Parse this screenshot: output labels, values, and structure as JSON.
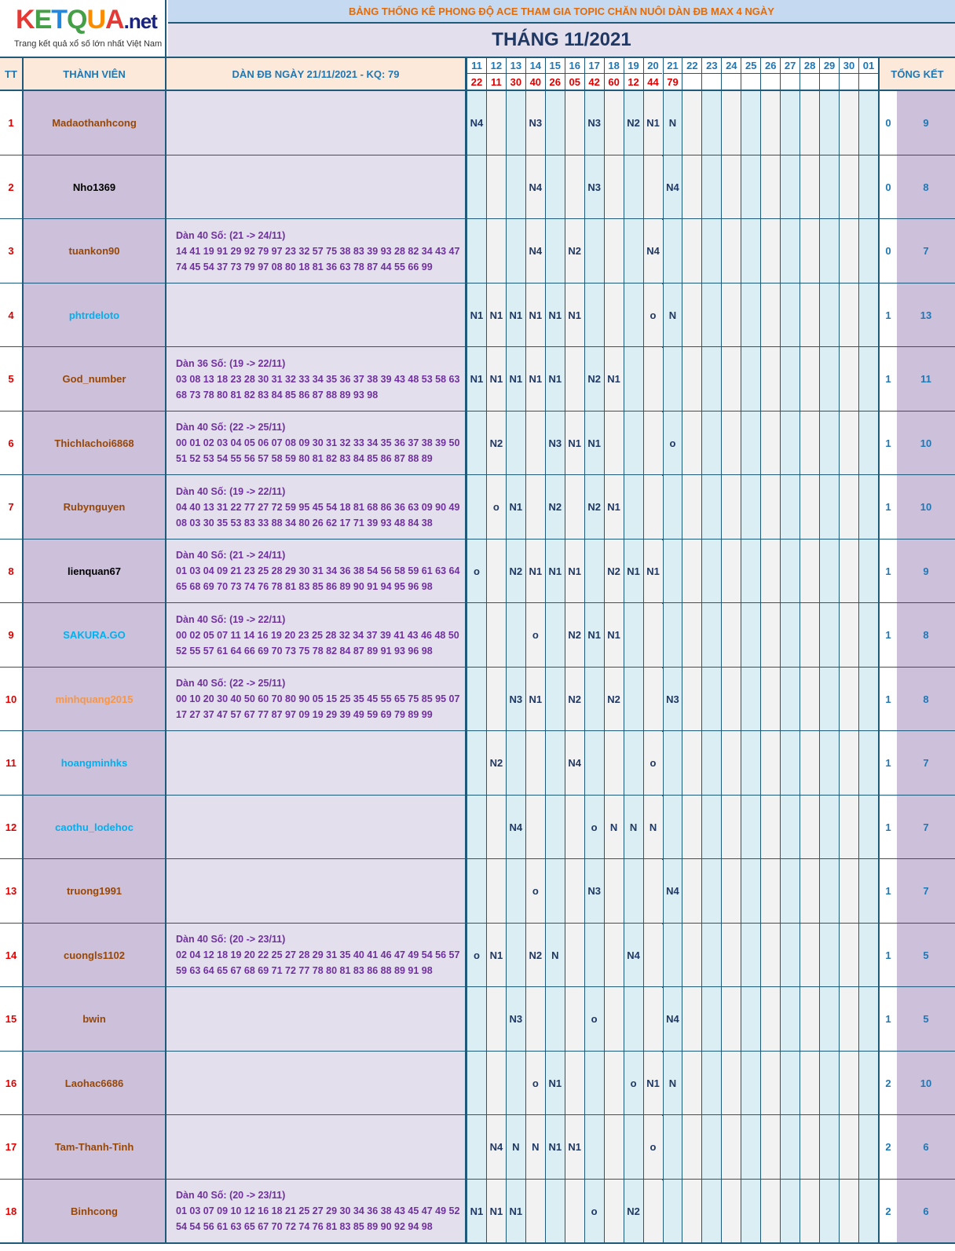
{
  "logo": {
    "brand_letters": [
      "K",
      "E",
      "T",
      "Q",
      "U",
      "A"
    ],
    "domain": ".net",
    "tagline": "Trang kết quả xổ số lớn nhất Việt Nam"
  },
  "title": "BẢNG THỐNG KÊ PHONG ĐỘ ACE THAM GIA TOPIC CHĂN NUÔI DÀN ĐB MAX 4 NGÀY",
  "month": "THÁNG 11/2021",
  "headers": {
    "tt": "TT",
    "member": "THÀNH VIÊN",
    "dan": "DÀN ĐB NGÀY 21/11/2021 - KQ: 79",
    "total": "TỔNG KẾT"
  },
  "days": [
    "11",
    "12",
    "13",
    "14",
    "15",
    "16",
    "17",
    "18",
    "19",
    "20",
    "21",
    "22",
    "23",
    "24",
    "25",
    "26",
    "27",
    "28",
    "29",
    "30",
    "01"
  ],
  "results": [
    "22",
    "11",
    "30",
    "40",
    "26",
    "05",
    "42",
    "60",
    "12",
    "44",
    "79",
    "",
    "",
    "",
    "",
    "",
    "",
    "",
    "",
    "",
    ""
  ],
  "colors": {
    "brown": "#974706",
    "black": "#000000",
    "blue": "#00b0f0",
    "orange": "#f79646"
  },
  "rows": [
    {
      "tt": "1",
      "name": "Madaothanhcong",
      "color": "brown",
      "dan": [
        "",
        "",
        ""
      ],
      "cells": [
        "N4",
        "",
        "",
        "N3",
        "",
        "",
        "N3",
        "",
        "N2",
        "N1",
        "N",
        "",
        "",
        "",
        "",
        "",
        "",
        "",
        "",
        "",
        ""
      ],
      "count": "0",
      "total": "9"
    },
    {
      "tt": "2",
      "name": "Nho1369",
      "color": "black",
      "dan": [
        "",
        "",
        ""
      ],
      "cells": [
        "",
        "",
        "",
        "N4",
        "",
        "",
        "N3",
        "",
        "",
        "",
        "N4",
        "",
        "",
        "",
        "",
        "",
        "",
        "",
        "",
        "",
        ""
      ],
      "count": "0",
      "total": "8"
    },
    {
      "tt": "3",
      "name": "tuankon90",
      "color": "brown",
      "dan": [
        "Dàn 40 Số: (21 -> 24/11)",
        "14 41 19 91 29 92 79 97 23 32 57 75 38 83 39 93 28 82 34 43 47",
        "74 45 54 37 73 79 97 08 80 18 81 36 63 78 87 44 55 66 99"
      ],
      "cells": [
        "",
        "",
        "",
        "N4",
        "",
        "N2",
        "",
        "",
        "",
        "N4",
        "",
        "",
        "",
        "",
        "",
        "",
        "",
        "",
        "",
        "",
        ""
      ],
      "count": "0",
      "total": "7"
    },
    {
      "tt": "4",
      "name": "phtrdeloto",
      "color": "blue",
      "dan": [
        "",
        "",
        ""
      ],
      "cells": [
        "N1",
        "N1",
        "N1",
        "N1",
        "N1",
        "N1",
        "",
        "",
        "",
        "o",
        "N",
        "",
        "",
        "",
        "",
        "",
        "",
        "",
        "",
        "",
        ""
      ],
      "count": "1",
      "total": "13"
    },
    {
      "tt": "5",
      "name": "God_number",
      "color": "brown",
      "dan": [
        "Dàn 36 Số: (19 -> 22/11)",
        "03 08 13 18 23 28 30 31 32 33 34 35 36 37 38 39 43 48 53 58 63",
        "68 73 78 80 81 82 83 84 85 86 87 88 89 93 98"
      ],
      "cells": [
        "N1",
        "N1",
        "N1",
        "N1",
        "N1",
        "",
        "N2",
        "N1",
        "",
        "",
        "",
        "",
        "",
        "",
        "",
        "",
        "",
        "",
        "",
        "",
        ""
      ],
      "count": "1",
      "total": "11"
    },
    {
      "tt": "6",
      "name": "Thichlachoi6868",
      "color": "brown",
      "dan": [
        "Dàn 40 Số: (22 -> 25/11)",
        "00 01 02 03 04 05 06 07 08 09 30 31 32 33 34 35 36 37 38 39 50",
        "51 52 53 54 55 56 57 58 59 80 81 82 83 84 85 86 87 88 89"
      ],
      "cells": [
        "",
        "N2",
        "",
        "",
        "N3",
        "N1",
        "N1",
        "",
        "",
        "",
        "o",
        "",
        "",
        "",
        "",
        "",
        "",
        "",
        "",
        "",
        ""
      ],
      "count": "1",
      "total": "10"
    },
    {
      "tt": "7",
      "name": "Rubynguyen",
      "color": "brown",
      "dan": [
        "Dàn 40 Số: (19 -> 22/11)",
        "04 40 13 31 22 77 27 72 59 95 45 54 18 81 68 86 36 63 09 90 49",
        "08 03 30 35 53 83 33 88 34 80 26 62 17 71 39 93 48 84 38"
      ],
      "cells": [
        "",
        "o",
        "N1",
        "",
        "N2",
        "",
        "N2",
        "N1",
        "",
        "",
        "",
        "",
        "",
        "",
        "",
        "",
        "",
        "",
        "",
        "",
        ""
      ],
      "count": "1",
      "total": "10"
    },
    {
      "tt": "8",
      "name": "lienquan67",
      "color": "black",
      "dan": [
        "Dàn 40 Số: (21 -> 24/11)",
        "01 03 04 09 21 23 25 28 29 30 31 34 36 38 54 56 58 59 61 63 64",
        "65 68 69 70 73 74 76 78 81 83 85 86 89 90 91 94 95 96 98"
      ],
      "cells": [
        "o",
        "",
        "N2",
        "N1",
        "N1",
        "N1",
        "",
        "N2",
        "N1",
        "N1",
        "",
        "",
        "",
        "",
        "",
        "",
        "",
        "",
        "",
        "",
        ""
      ],
      "count": "1",
      "total": "9"
    },
    {
      "tt": "9",
      "name": "SAKURA.GO",
      "color": "blue",
      "dan": [
        "Dàn 40 Số: (19 -> 22/11)",
        "00 02 05 07 11 14 16 19 20 23 25 28 32 34 37 39 41 43 46 48 50",
        "52 55 57 61 64 66 69 70 73 75 78 82 84 87 89 91 93 96 98"
      ],
      "cells": [
        "",
        "",
        "",
        "o",
        "",
        "N2",
        "N1",
        "N1",
        "",
        "",
        "",
        "",
        "",
        "",
        "",
        "",
        "",
        "",
        "",
        "",
        ""
      ],
      "count": "1",
      "total": "8"
    },
    {
      "tt": "10",
      "name": "minhquang2015",
      "color": "orange",
      "dan": [
        "Dàn 40 Số: (22 -> 25/11)",
        "00 10 20 30 40 50 60 70 80 90 05 15 25 35 45 55 65 75 85 95 07",
        "17 27 37 47 57 67 77 87 97 09 19 29 39 49 59 69 79 89 99"
      ],
      "cells": [
        "",
        "",
        "N3",
        "N1",
        "",
        "N2",
        "",
        "N2",
        "",
        "",
        "N3",
        "",
        "",
        "",
        "",
        "",
        "",
        "",
        "",
        "",
        ""
      ],
      "count": "1",
      "total": "8"
    },
    {
      "tt": "11",
      "name": "hoangminhks",
      "color": "blue",
      "dan": [
        "",
        "",
        ""
      ],
      "cells": [
        "",
        "N2",
        "",
        "",
        "",
        "N4",
        "",
        "",
        "",
        "o",
        "",
        "",
        "",
        "",
        "",
        "",
        "",
        "",
        "",
        "",
        ""
      ],
      "count": "1",
      "total": "7"
    },
    {
      "tt": "12",
      "name": "caothu_lodehoc",
      "color": "blue",
      "dan": [
        "",
        "",
        ""
      ],
      "cells": [
        "",
        "",
        "N4",
        "",
        "",
        "",
        "o",
        "N",
        "N",
        "N",
        "",
        "",
        "",
        "",
        "",
        "",
        "",
        "",
        "",
        "",
        ""
      ],
      "count": "1",
      "total": "7"
    },
    {
      "tt": "13",
      "name": "truong1991",
      "color": "brown",
      "dan": [
        "",
        "",
        ""
      ],
      "cells": [
        "",
        "",
        "",
        "o",
        "",
        "",
        "N3",
        "",
        "",
        "",
        "N4",
        "",
        "",
        "",
        "",
        "",
        "",
        "",
        "",
        "",
        ""
      ],
      "count": "1",
      "total": "7"
    },
    {
      "tt": "14",
      "name": "cuongls1102",
      "color": "brown",
      "dan": [
        "Dàn 40 Số: (20 -> 23/11)",
        "02 04 12 18 19 20 22 25 27 28 29 31 35 40 41 46 47 49 54 56 57",
        "59 63 64 65 67 68 69 71 72 77 78 80 81 83 86 88 89 91 98"
      ],
      "cells": [
        "o",
        "N1",
        "",
        "N2",
        "N",
        "",
        "",
        "",
        "N4",
        "",
        "",
        "",
        "",
        "",
        "",
        "",
        "",
        "",
        "",
        "",
        ""
      ],
      "count": "1",
      "total": "5"
    },
    {
      "tt": "15",
      "name": "bwin",
      "color": "brown",
      "dan": [
        "",
        "",
        ""
      ],
      "cells": [
        "",
        "",
        "N3",
        "",
        "",
        "",
        "o",
        "",
        "",
        "",
        "N4",
        "",
        "",
        "",
        "",
        "",
        "",
        "",
        "",
        "",
        ""
      ],
      "count": "1",
      "total": "5"
    },
    {
      "tt": "16",
      "name": "Laohac6686",
      "color": "brown",
      "dan": [
        "",
        "",
        ""
      ],
      "cells": [
        "",
        "",
        "",
        "o",
        "N1",
        "",
        "",
        "",
        "o",
        "N1",
        "N",
        "",
        "",
        "",
        "",
        "",
        "",
        "",
        "",
        "",
        ""
      ],
      "count": "2",
      "total": "10"
    },
    {
      "tt": "17",
      "name": "Tam-Thanh-Tinh",
      "color": "brown",
      "dan": [
        "",
        "",
        ""
      ],
      "cells": [
        "",
        "N4",
        "N",
        "N",
        "N1",
        "N1",
        "",
        "",
        "",
        "o",
        "",
        "",
        "",
        "",
        "",
        "",
        "",
        "",
        "",
        "",
        ""
      ],
      "count": "2",
      "total": "6"
    },
    {
      "tt": "18",
      "name": "Binhcong",
      "color": "brown",
      "dan": [
        "Dàn 40 Số: (20 -> 23/11)",
        "01 03 07 09 10 12 16 18 21 25 27 29 30 34 36 38 43 45 47 49 52",
        "54 54 56 61 63 65 67 70 72 74 76 81 83 85 89 90 92 94 98"
      ],
      "cells": [
        "N1",
        "N1",
        "N1",
        "",
        "",
        "",
        "o",
        "",
        "N2",
        "",
        "",
        "",
        "",
        "",
        "",
        "",
        "",
        "",
        "",
        "",
        ""
      ],
      "count": "2",
      "total": "6"
    }
  ]
}
